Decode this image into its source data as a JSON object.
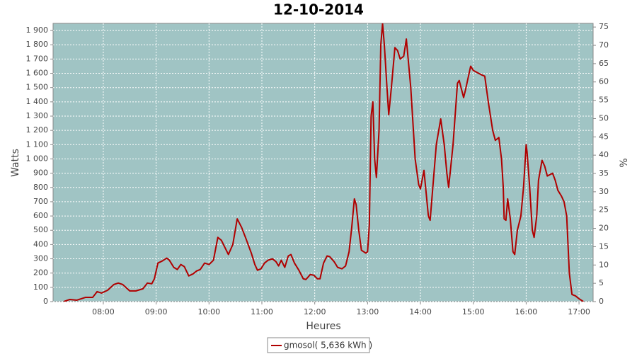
{
  "chart_data": {
    "type": "line",
    "title": "12-10-2014",
    "x_label": "Heures",
    "y_label": "Watts",
    "y2_label": "%",
    "x": [
      "07:15",
      "07:22",
      "07:30",
      "07:40",
      "07:48",
      "07:53",
      "07:58",
      "08:05",
      "08:12",
      "08:17",
      "08:22",
      "08:30",
      "08:37",
      "08:45",
      "08:50",
      "08:55",
      "08:58",
      "09:02",
      "09:07",
      "09:12",
      "09:15",
      "09:20",
      "09:24",
      "09:28",
      "09:32",
      "09:37",
      "09:42",
      "09:46",
      "09:50",
      "09:55",
      "10:00",
      "10:05",
      "10:10",
      "10:14",
      "10:18",
      "10:22",
      "10:27",
      "10:32",
      "10:37",
      "10:42",
      "10:48",
      "10:52",
      "10:55",
      "10:59",
      "11:03",
      "11:07",
      "11:12",
      "11:16",
      "11:19",
      "11:22",
      "11:26",
      "11:30",
      "11:33",
      "11:37",
      "11:42",
      "11:47",
      "11:50",
      "11:55",
      "11:59",
      "12:03",
      "12:06",
      "12:10",
      "12:14",
      "12:17",
      "12:22",
      "12:26",
      "12:31",
      "12:35",
      "12:39",
      "12:42",
      "12:45",
      "12:47",
      "12:50",
      "12:53",
      "12:58",
      "13:00",
      "13:02",
      "13:04",
      "13:06",
      "13:08",
      "13:10",
      "13:13",
      "13:15",
      "13:17",
      "13:19",
      "13:22",
      "13:24",
      "13:27",
      "13:31",
      "13:34",
      "13:37",
      "13:41",
      "13:44",
      "13:49",
      "13:54",
      "13:58",
      "14:00",
      "14:04",
      "14:09",
      "14:11",
      "14:18",
      "14:23",
      "14:27",
      "14:30",
      "14:32",
      "14:37",
      "14:42",
      "14:44",
      "14:49",
      "14:51",
      "14:57",
      "15:00",
      "15:09",
      "15:13",
      "15:17",
      "15:22",
      "15:25",
      "15:29",
      "15:32",
      "15:34",
      "15:35",
      "15:37",
      "15:39",
      "15:42",
      "15:45",
      "15:47",
      "15:50",
      "15:54",
      "15:57",
      "16:00",
      "16:01",
      "16:04",
      "16:07",
      "16:09",
      "16:12",
      "16:14",
      "16:18",
      "16:21",
      "16:24",
      "16:27",
      "16:30",
      "16:33",
      "16:36",
      "16:40",
      "16:43",
      "16:46",
      "16:49",
      "16:52",
      "16:56",
      "17:00",
      "17:05"
    ],
    "series": [
      {
        "name": "gmosol( 5,636 kWh )",
        "color": "#b00000",
        "values": [
          0,
          15,
          10,
          30,
          30,
          70,
          60,
          80,
          120,
          130,
          120,
          75,
          75,
          90,
          130,
          125,
          160,
          270,
          285,
          305,
          290,
          240,
          225,
          260,
          245,
          180,
          195,
          215,
          225,
          270,
          260,
          290,
          450,
          430,
          380,
          330,
          400,
          580,
          520,
          440,
          340,
          260,
          220,
          230,
          270,
          290,
          300,
          280,
          250,
          290,
          240,
          320,
          330,
          270,
          220,
          160,
          155,
          190,
          185,
          160,
          160,
          270,
          320,
          315,
          280,
          240,
          230,
          250,
          350,
          520,
          720,
          680,
          500,
          360,
          340,
          350,
          540,
          1300,
          1400,
          1000,
          870,
          1200,
          1800,
          1950,
          1800,
          1500,
          1310,
          1500,
          1780,
          1760,
          1700,
          1720,
          1840,
          1500,
          1000,
          820,
          790,
          920,
          600,
          570,
          1100,
          1280,
          1100,
          900,
          800,
          1100,
          1530,
          1550,
          1430,
          1480,
          1650,
          1620,
          1590,
          1580,
          1400,
          1200,
          1130,
          1150,
          1000,
          800,
          580,
          570,
          720,
          580,
          350,
          330,
          500,
          600,
          800,
          1100,
          1050,
          800,
          500,
          450,
          600,
          850,
          990,
          950,
          880,
          890,
          900,
          850,
          780,
          740,
          700,
          600,
          200,
          50,
          40,
          20,
          0
        ]
      }
    ],
    "xlim": [
      "07:03",
      "17:16"
    ],
    "xticks": [
      "08:00",
      "09:00",
      "10:00",
      "11:00",
      "12:00",
      "13:00",
      "14:00",
      "15:00",
      "16:00",
      "17:00"
    ],
    "ylim": [
      0,
      1950
    ],
    "yticks": [
      0,
      100,
      200,
      300,
      400,
      500,
      600,
      700,
      800,
      900,
      {
        "value": 1000,
        "label": "1 000"
      },
      {
        "value": 1100,
        "label": "1 100"
      },
      {
        "value": 1200,
        "label": "1 200"
      },
      {
        "value": 1300,
        "label": "1 300"
      },
      {
        "value": 1400,
        "label": "1 400"
      },
      {
        "value": 1500,
        "label": "1 500"
      },
      {
        "value": 1600,
        "label": "1 600"
      },
      {
        "value": 1700,
        "label": "1 700"
      },
      {
        "value": 1800,
        "label": "1 800"
      },
      {
        "value": 1900,
        "label": "1 900"
      }
    ],
    "y2lim": [
      0,
      76
    ],
    "y2ticks": [
      0,
      5,
      10,
      15,
      20,
      25,
      30,
      35,
      40,
      45,
      50,
      55,
      60,
      65,
      70,
      75
    ],
    "grid": true,
    "legend": "bottom"
  }
}
